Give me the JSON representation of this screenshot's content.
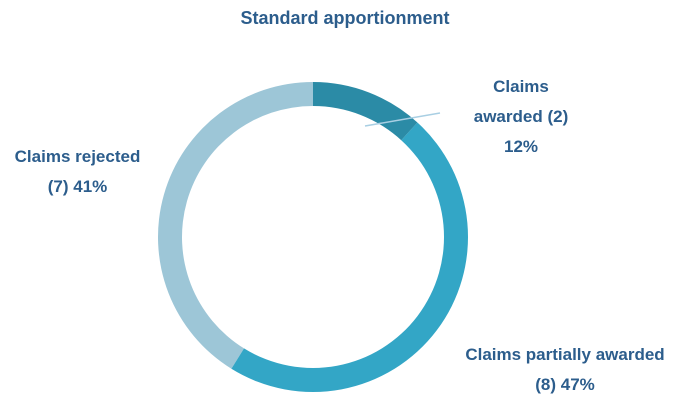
{
  "chart_data": {
    "type": "donut",
    "title": "Standard apportionment",
    "categories": [
      "Claims awarded",
      "Claims partially awarded",
      "Claims rejected"
    ],
    "values": [
      2,
      8,
      7
    ],
    "value_labels": [
      "(2)",
      "(8)",
      "(7)"
    ],
    "percents": [
      12,
      47,
      41
    ],
    "percent_labels": [
      "12%",
      "47%",
      "41%"
    ],
    "colors": [
      "#2b8ba6",
      "#33a6c6",
      "#9dc6d7"
    ]
  }
}
